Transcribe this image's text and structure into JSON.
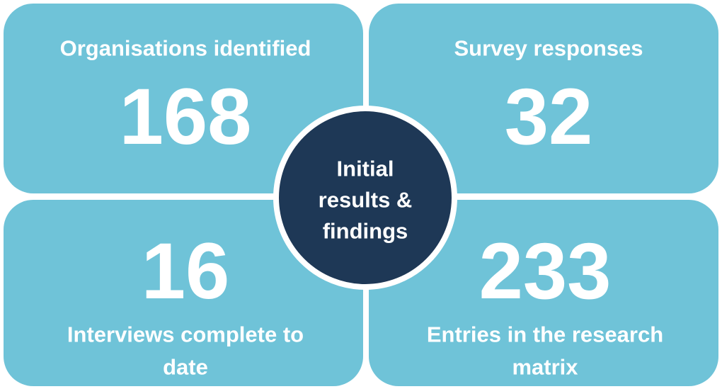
{
  "tiles": [
    {
      "label": [
        "Organisations identified"
      ],
      "value": 168
    },
    {
      "label": [
        "Survey responses"
      ],
      "value": 32
    },
    {
      "label": [
        "Interviews complete to",
        "date"
      ],
      "value": 16
    },
    {
      "label": [
        "Entries in the research",
        "matrix"
      ],
      "value": 233
    }
  ],
  "center": {
    "lines": [
      "Initial",
      "results &",
      "findings"
    ]
  }
}
